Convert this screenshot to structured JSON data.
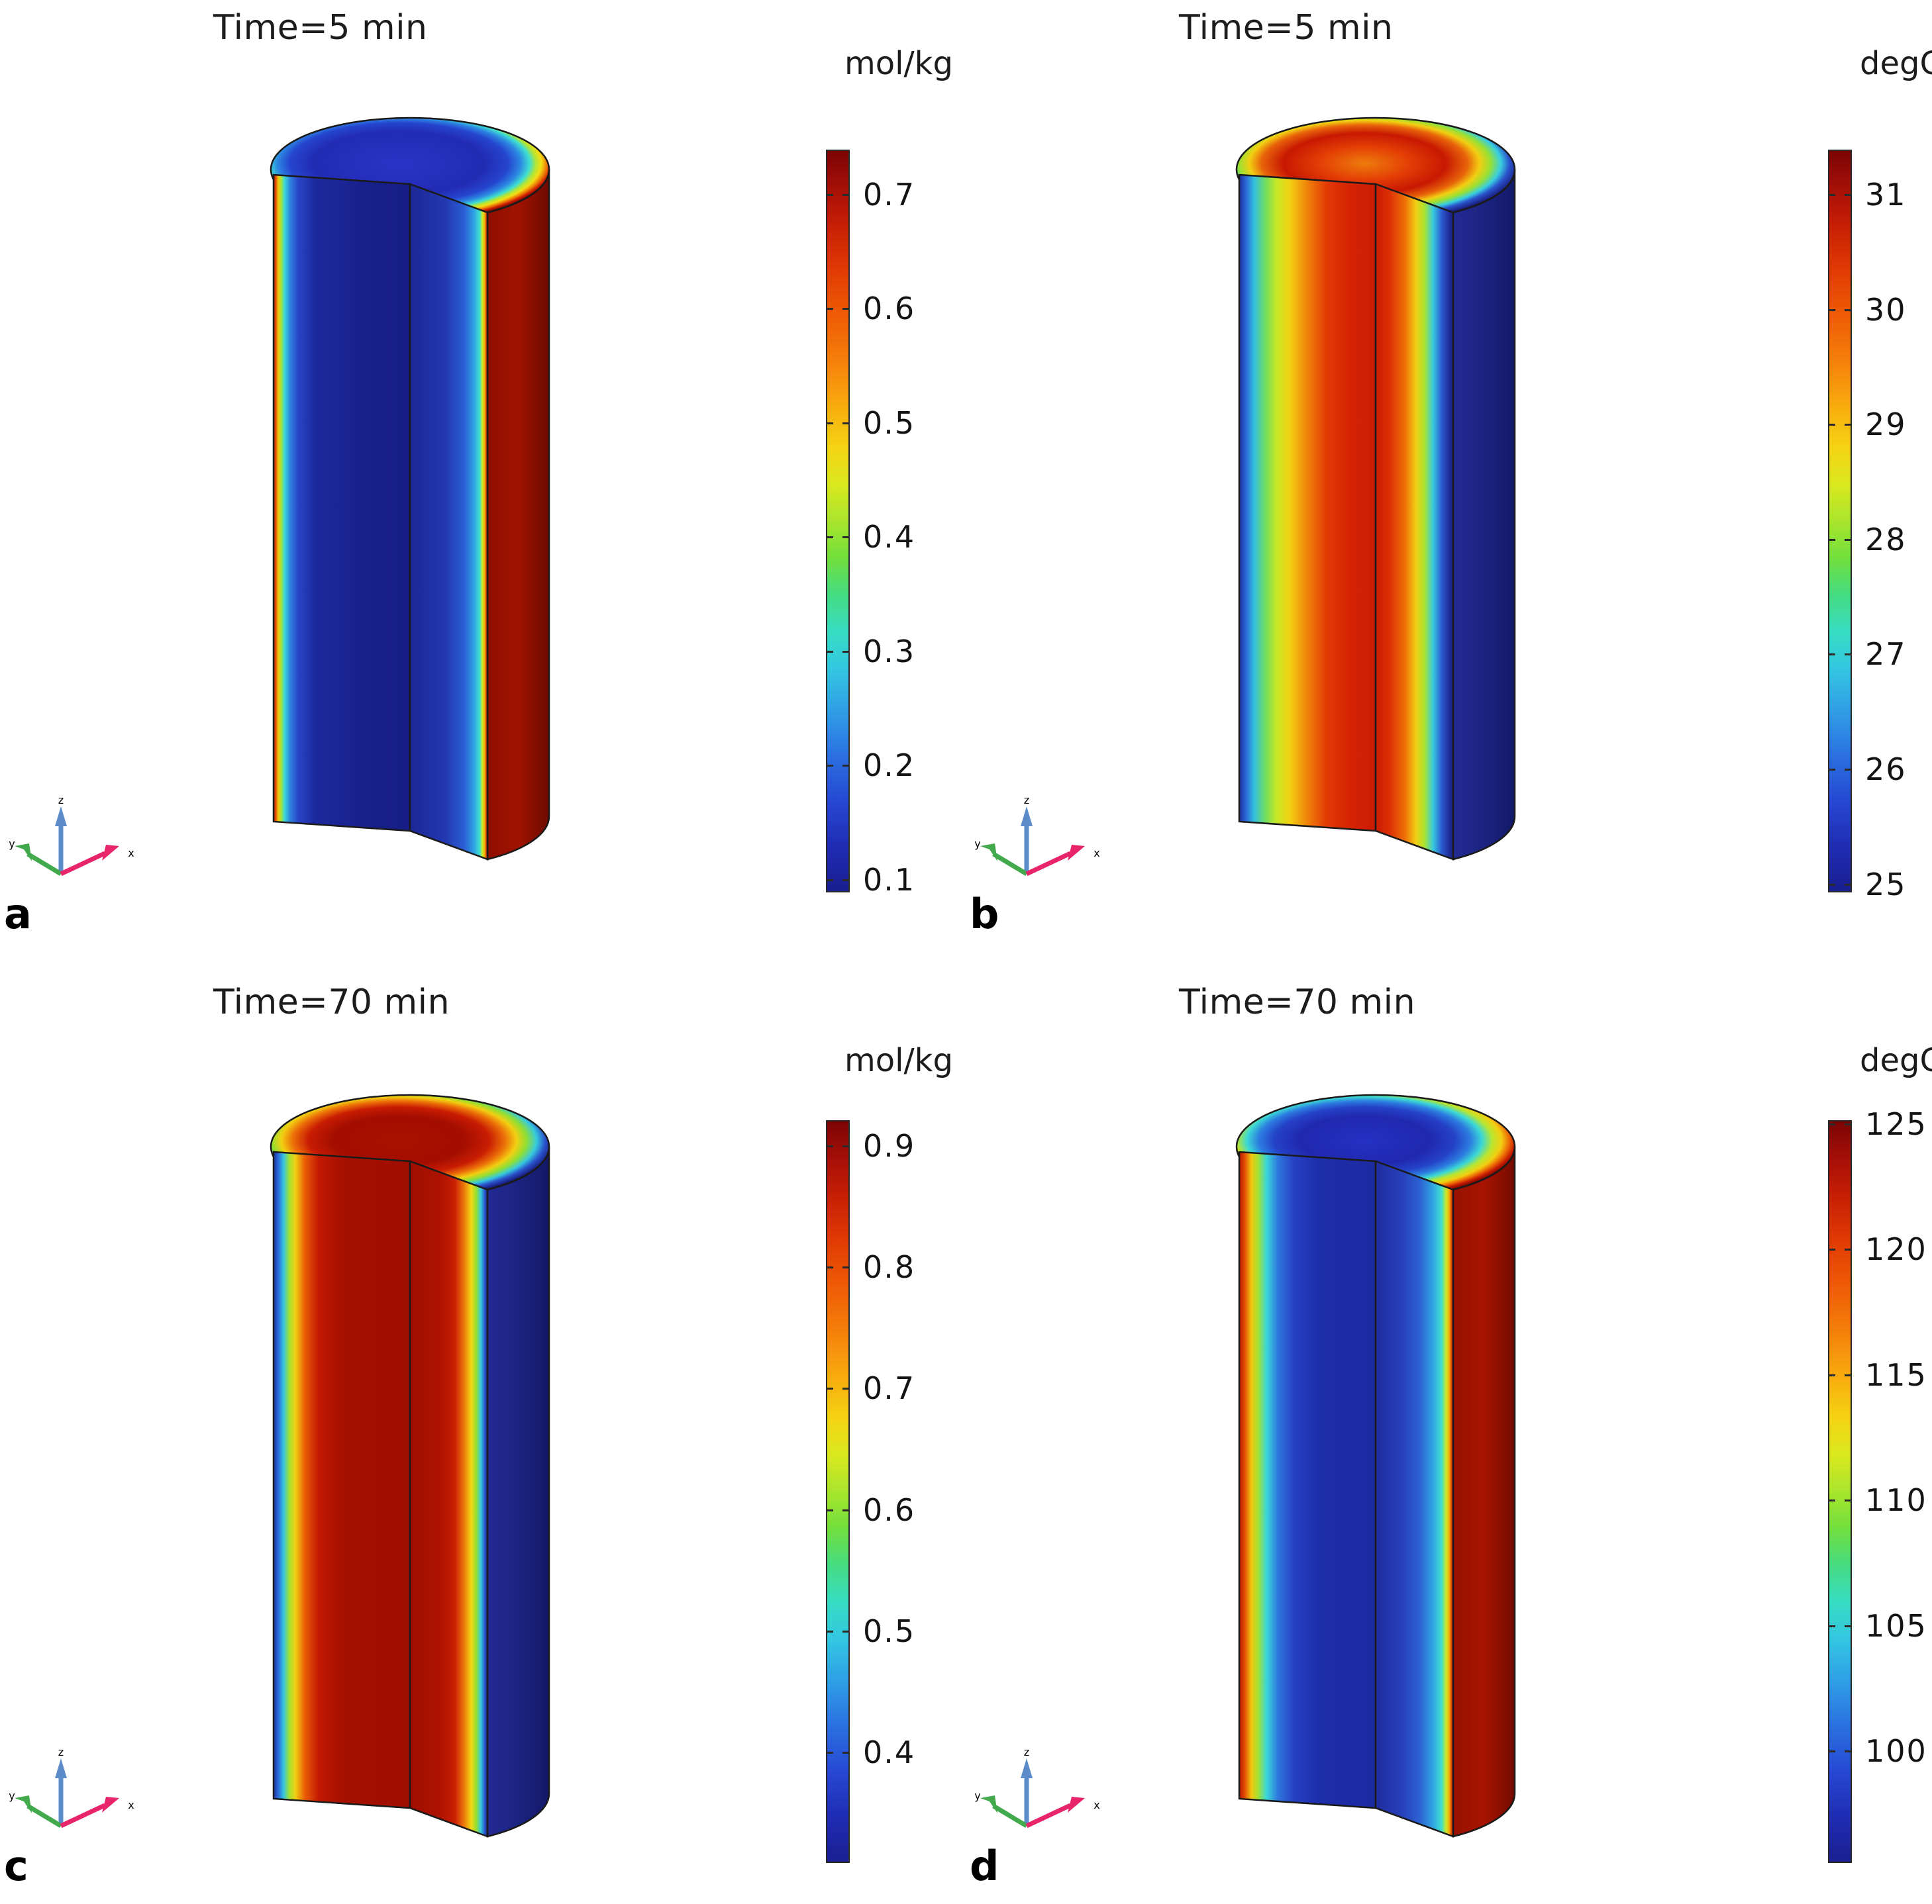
{
  "figure": {
    "axis_triad": {
      "x": "x",
      "y": "y",
      "z": "z"
    },
    "colors": {
      "background": "#ffffff",
      "text": "#1a1a1a",
      "geometry_edge": "#1a1a1a",
      "triad_x_arrow": "#e8256b",
      "triad_y_arrow": "#43a94d",
      "triad_z_arrow": "#5b8cc9",
      "colormap_name": "rainbow",
      "colormap_top_max": "#7a0403",
      "colormap_middle": "#f5d312",
      "colormap_bottom_min": "#191f90"
    },
    "panels": [
      {
        "letter": "a",
        "title": "Time=5 min",
        "colorbar": {
          "unit": "mol/kg",
          "vmax": 0.738,
          "vmin": 0.09,
          "ticks": [
            {
              "label": "0.7",
              "value": 0.7
            },
            {
              "label": "0.6",
              "value": 0.6
            },
            {
              "label": "0.5",
              "value": 0.5
            },
            {
              "label": "0.4",
              "value": 0.4
            },
            {
              "label": "0.3",
              "value": 0.3
            },
            {
              "label": "0.2",
              "value": 0.2
            },
            {
              "label": "0.1",
              "value": 0.1
            }
          ]
        },
        "pattern": "dark-blue low-concentration core with thin red/yellow/cyan high-concentration boundary layer at the outer surface; outer shell dark red"
      },
      {
        "letter": "b",
        "title": "Time=5 min",
        "colorbar": {
          "unit": "degC",
          "vmax": 31.38,
          "vmin": 24.94,
          "ticks": [
            {
              "label": "31",
              "value": 31
            },
            {
              "label": "30",
              "value": 30
            },
            {
              "label": "29",
              "value": 29
            },
            {
              "label": "28",
              "value": 28
            },
            {
              "label": "27",
              "value": 27
            },
            {
              "label": "26",
              "value": 26
            },
            {
              "label": "25",
              "value": 25
            }
          ]
        },
        "pattern": "hot red ring inside the cylinder with cooler blue outer surface; outer shell dark navy"
      },
      {
        "letter": "c",
        "title": "Time=70 min",
        "colorbar": {
          "unit": "mol/kg",
          "vmax": 0.92,
          "vmin": 0.31,
          "ticks": [
            {
              "label": "0.9",
              "value": 0.9
            },
            {
              "label": "0.8",
              "value": 0.8
            },
            {
              "label": "0.7",
              "value": 0.7
            },
            {
              "label": "0.6",
              "value": 0.6
            },
            {
              "label": "0.5",
              "value": 0.5
            },
            {
              "label": "0.4",
              "value": 0.4
            }
          ]
        },
        "pattern": "broad dark-red high-concentration core with thin blue/cyan/yellow bands near the outer surface; outer shell dark navy"
      },
      {
        "letter": "d",
        "title": "Time=70 min",
        "colorbar": {
          "unit": "degC",
          "vmax": 125.1,
          "vmin": 95.6,
          "ticks": [
            {
              "label": "125",
              "value": 125
            },
            {
              "label": "120",
              "value": 120
            },
            {
              "label": "115",
              "value": 115
            },
            {
              "label": "110",
              "value": 110
            },
            {
              "label": "105",
              "value": 105
            },
            {
              "label": "100",
              "value": 100
            }
          ]
        },
        "pattern": "cool blue core with thick hot red/orange boundary layer at the outer surface; outer shell dark red"
      }
    ]
  },
  "chart_data": [
    {
      "type": "heatmap",
      "title": "Time=5 min",
      "ylabel": "mol/kg",
      "legend_position": "right colorbar",
      "colorbar_ticks": [
        0.7,
        0.6,
        0.5,
        0.4,
        0.3,
        0.2,
        0.1
      ],
      "value_range": [
        0.09,
        0.738
      ],
      "geometry": "3/4 cut-away vertical cylinder, quarter wedge removed at front-right",
      "field": "concentration: ~0.1 mol/kg in core rising to ~0.73 mol/kg at outer wall"
    },
    {
      "type": "heatmap",
      "title": "Time=5 min",
      "ylabel": "degC",
      "legend_position": "right colorbar",
      "colorbar_ticks": [
        31,
        30,
        29,
        28,
        27,
        26,
        25
      ],
      "value_range": [
        24.94,
        31.38
      ],
      "geometry": "3/4 cut-away vertical cylinder, quarter wedge removed at front-right",
      "field": "temperature: ~25 degC at outer wall, peak ~31 degC in interior ring"
    },
    {
      "type": "heatmap",
      "title": "Time=70 min",
      "ylabel": "mol/kg",
      "legend_position": "right colorbar",
      "colorbar_ticks": [
        0.9,
        0.8,
        0.7,
        0.6,
        0.5,
        0.4
      ],
      "value_range": [
        0.31,
        0.92
      ],
      "geometry": "3/4 cut-away vertical cylinder, quarter wedge removed at front-right",
      "field": "concentration: ~0.9 mol/kg in broad core, ~0.33 mol/kg at outer wall"
    },
    {
      "type": "heatmap",
      "title": "Time=70 min",
      "ylabel": "degC",
      "legend_position": "right colorbar",
      "colorbar_ticks": [
        125,
        120,
        115,
        110,
        105,
        100
      ],
      "value_range": [
        95.6,
        125.1
      ],
      "geometry": "3/4 cut-away vertical cylinder, quarter wedge removed at front-right",
      "field": "temperature: ~96 degC in core rising to ~125 degC at outer wall"
    }
  ]
}
